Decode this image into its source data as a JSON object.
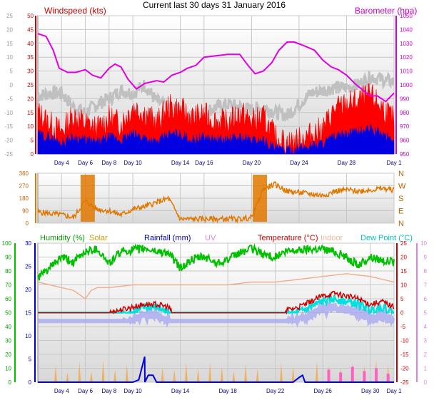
{
  "title": "Current last 30 days 31 January 2016",
  "chart_data": [
    {
      "type": "line",
      "panel": "wind-barometer",
      "left_axis_label": "Windspeed (kts)",
      "right_axis_label": "Barometer (hpa)",
      "outer_left_ticks": [
        "25",
        "20",
        "15",
        "10",
        "5",
        "0",
        "-5",
        "-10",
        "-15",
        "-20",
        "-25"
      ],
      "left_ticks": [
        "50",
        "45",
        "40",
        "35",
        "30",
        "25",
        "20",
        "15",
        "10",
        "5",
        "0"
      ],
      "right_ticks": [
        "1050",
        "1040",
        "1030",
        "1020",
        "1010",
        "1000",
        "990",
        "980",
        "970",
        "960",
        "950"
      ],
      "ylim_left": [
        0,
        50
      ],
      "ylim_right": [
        950,
        1050
      ],
      "x_ticks": [
        "Day 4",
        "Day 6",
        "Day 8",
        "Day 10",
        "Day 14",
        "Day 16",
        "Day 20",
        "Day 24",
        "Day 28",
        "Day 1"
      ],
      "x_tick_days": [
        4,
        6,
        8,
        10,
        14,
        16,
        20,
        24,
        28,
        32
      ],
      "xlim_days": [
        2,
        32
      ],
      "series": [
        {
          "key": "barometer",
          "color": "#e000e0",
          "axis": "right",
          "x": [
            2.0,
            2.7,
            3.3,
            3.8,
            4.5,
            5.2,
            6.0,
            6.6,
            7.3,
            8.0,
            8.5,
            9.0,
            9.6,
            10.3,
            11.0,
            12.0,
            12.6,
            13.3,
            14.0,
            14.6,
            15.3,
            16.0,
            17.0,
            18.0,
            19.0,
            19.8,
            20.3,
            21.0,
            21.7,
            22.3,
            23.0,
            23.6,
            24.5,
            25.3,
            26.0,
            26.7,
            27.3,
            28.0,
            28.7,
            29.4,
            30.0,
            30.6,
            31.3,
            32.0
          ],
          "values": [
            1037,
            1035,
            1025,
            1012,
            1009,
            1009,
            1011,
            1007,
            1005,
            1012,
            1015,
            1013,
            1004,
            997,
            1001,
            1003,
            1002,
            1007,
            1009,
            1012,
            1014,
            1020,
            1021,
            1022,
            1022,
            1013,
            1008,
            1010,
            1016,
            1025,
            1031,
            1031,
            1028,
            1025,
            1018,
            1013,
            1011,
            1007,
            1001,
            996,
            992,
            992,
            988,
            994
          ]
        },
        {
          "key": "wind-gust-trace",
          "color": "#c0c0c0",
          "axis": "left",
          "x": [
            2.0,
            3.0,
            4.0,
            5.0,
            6.0,
            7.0,
            8.0,
            9.0,
            10.0,
            11.0,
            12.0,
            13.0,
            14.0,
            15.0,
            16.0,
            17.0,
            18.0,
            19.0,
            20.0,
            21.0,
            22.0,
            23.0,
            24.0,
            25.0,
            26.0,
            27.0,
            28.0,
            29.0,
            30.0,
            31.0,
            32.0
          ],
          "values": [
            21,
            22,
            22,
            17,
            15,
            18,
            20,
            23,
            22,
            25,
            19,
            17,
            15,
            13,
            15,
            17,
            18,
            17,
            16,
            17,
            15,
            14,
            18,
            22,
            23,
            24,
            24,
            25,
            28,
            27,
            26
          ]
        },
        {
          "key": "wind-max",
          "color": "#ff0000",
          "axis": "left",
          "x": [
            2.0,
            3.0,
            4.0,
            5.0,
            6.0,
            7.0,
            8.0,
            9.0,
            10.0,
            11.0,
            12.0,
            13.0,
            14.0,
            15.0,
            16.0,
            17.0,
            18.0,
            19.0,
            20.0,
            21.0,
            22.0,
            23.0,
            24.0,
            25.0,
            26.0,
            27.0,
            28.0,
            29.0,
            30.0,
            31.0,
            32.0
          ],
          "values": [
            15,
            11,
            8,
            14,
            11,
            9,
            13,
            11,
            17,
            15,
            11,
            17,
            16,
            13,
            14,
            12,
            11,
            15,
            12,
            13,
            6,
            4,
            5,
            7,
            9,
            16,
            18,
            19,
            21,
            17,
            12
          ]
        },
        {
          "key": "wind-average",
          "color": "#0000e0",
          "axis": "left",
          "x": [
            2.0,
            3.0,
            4.0,
            5.0,
            6.0,
            7.0,
            8.0,
            9.0,
            10.0,
            11.0,
            12.0,
            13.0,
            14.0,
            15.0,
            16.0,
            17.0,
            18.0,
            19.0,
            20.0,
            21.0,
            22.0,
            23.0,
            24.0,
            25.0,
            26.0,
            27.0,
            28.0,
            29.0,
            30.0,
            31.0,
            32.0
          ],
          "values": [
            7,
            6,
            4,
            6,
            5,
            4,
            6,
            5,
            7,
            6,
            4,
            7,
            7,
            5,
            6,
            5,
            5,
            6,
            5,
            5,
            2,
            1,
            2,
            3,
            4,
            6,
            7,
            8,
            9,
            7,
            5
          ]
        }
      ]
    },
    {
      "type": "line",
      "panel": "wind-direction",
      "left_ticks": [
        "360",
        "270",
        "180",
        "90",
        "0"
      ],
      "right_ticks": [
        "N",
        "W",
        "S",
        "E",
        "N"
      ],
      "ylim": [
        0,
        360
      ],
      "series": [
        {
          "key": "wind-direction",
          "color": "#e07800",
          "x": [
            2.0,
            3.0,
            4.0,
            5.0,
            6.0,
            7.0,
            8.0,
            9.0,
            10.0,
            11.0,
            12.0,
            13.0,
            14.0,
            15.0,
            16.0,
            17.0,
            18.0,
            19.0,
            20.0,
            21.0,
            22.0,
            23.0,
            24.0,
            25.0,
            26.0,
            27.0,
            28.0,
            29.0,
            30.0,
            31.0,
            32.0
          ],
          "values": [
            80,
            70,
            60,
            40,
            160,
            100,
            90,
            60,
            100,
            120,
            150,
            180,
            30,
            30,
            30,
            30,
            30,
            30,
            40,
            250,
            280,
            230,
            220,
            210,
            200,
            230,
            240,
            230,
            240,
            250,
            240
          ]
        }
      ]
    },
    {
      "type": "line",
      "panel": "humidity-rain-temperature",
      "legend": [
        "Humidity (%)",
        "Solar",
        "Rainfall (mm)",
        "UV",
        "Temperature (°C)",
        "Indoor",
        "Dew Point (°C)"
      ],
      "outer_left_ticks": [
        "100",
        "90",
        "80",
        "70",
        "60",
        "50",
        "40",
        "30",
        "20",
        "10",
        "0"
      ],
      "left_ticks": [
        "30",
        "25",
        "20",
        "15",
        "10",
        "5",
        "0"
      ],
      "right_ticks": [
        "25",
        "20",
        "15",
        "10",
        "5",
        "0",
        "-5",
        "-10",
        "-15",
        "-20",
        "-25"
      ],
      "outer_right_ticks": [
        "10",
        "9",
        "8",
        "7",
        "6",
        "5",
        "4",
        "3",
        "2",
        "1",
        "0"
      ],
      "ylim_humidity": [
        0,
        100
      ],
      "ylim_rainfall": [
        0,
        30
      ],
      "ylim_temperature": [
        -25,
        25
      ],
      "x_ticks": [
        "Day 4",
        "Day 6",
        "Day 8",
        "Day 10",
        "Day 14",
        "Day 18",
        "Day 22",
        "Day 26",
        "Day 30",
        "Day 1"
      ],
      "x_tick_days": [
        4,
        6,
        8,
        10,
        14,
        18,
        22,
        26,
        30,
        32
      ],
      "series": [
        {
          "key": "humidity",
          "name": "Humidity (%)",
          "color": "#00c000",
          "axis": "humidity",
          "x": [
            2.0,
            3.0,
            4.0,
            5.0,
            6.0,
            7.0,
            8.0,
            9.0,
            10.0,
            11.0,
            12.0,
            13.0,
            14.0,
            15.0,
            16.0,
            17.0,
            18.0,
            19.0,
            20.0,
            21.0,
            22.0,
            23.0,
            24.0,
            25.0,
            26.0,
            27.0,
            28.0,
            29.0,
            30.0,
            31.0,
            32.0
          ],
          "values": [
            75,
            82,
            90,
            86,
            94,
            96,
            85,
            94,
            95,
            96,
            94,
            93,
            82,
            88,
            90,
            86,
            88,
            93,
            96,
            92,
            90,
            94,
            95,
            96,
            96,
            94,
            90,
            84,
            90,
            88,
            86
          ]
        },
        {
          "key": "indoor",
          "name": "Indoor",
          "color": "#f0b090",
          "axis": "temperature",
          "x": [
            2.0,
            3.0,
            4.0,
            5.0,
            6.0,
            6.5,
            7.0,
            8.0,
            10.0,
            12.0,
            14.0,
            16.0,
            18.0,
            20.0,
            22.0,
            24.0,
            26.0,
            28.0,
            30.0,
            31.0,
            32.0
          ],
          "values": [
            11,
            10,
            9,
            8,
            5,
            8,
            9,
            9,
            10,
            10,
            10,
            10,
            10,
            11,
            11,
            12,
            13,
            14,
            13,
            12,
            11
          ]
        },
        {
          "key": "temperature",
          "name": "Temperature (°C)",
          "color": "#d00000",
          "axis": "temperature",
          "x": [
            2.0,
            3.0,
            4.0,
            5.0,
            6.0,
            7.0,
            8.0,
            9.0,
            10.0,
            11.0,
            12.0,
            13.0,
            14.0,
            15.0,
            16.0,
            17.0,
            18.0,
            19.0,
            20.0,
            21.0,
            22.0,
            23.0,
            24.0,
            25.0,
            26.0,
            27.0,
            28.0,
            29.0,
            30.0,
            31.0,
            32.0
          ],
          "values": [
            -2,
            -3,
            -4,
            -1,
            -3,
            -3,
            0,
            1,
            2,
            3,
            3,
            2,
            -5,
            -5,
            -6,
            -5,
            -4,
            -4,
            -3,
            -7,
            -10,
            1,
            2,
            4,
            6,
            7,
            6,
            5,
            3,
            4,
            2
          ]
        },
        {
          "key": "dew-point",
          "name": "Dew Point (°C)",
          "color": "#00e0e0",
          "axis": "temperature",
          "x": [
            2.0,
            3.0,
            4.0,
            5.0,
            6.0,
            7.0,
            8.0,
            9.0,
            10.0,
            11.0,
            12.0,
            13.0,
            14.0,
            15.0,
            16.0,
            17.0,
            18.0,
            19.0,
            20.0,
            21.0,
            22.0,
            23.0,
            24.0,
            25.0,
            26.0,
            27.0,
            28.0,
            29.0,
            30.0,
            31.0,
            32.0
          ],
          "values": [
            -4,
            -6,
            -6,
            -3,
            -5,
            -5,
            -2,
            -1,
            0,
            2,
            2,
            0,
            -7,
            -8,
            -9,
            -8,
            -6,
            -6,
            -5,
            -9,
            -11,
            -1,
            0,
            2,
            4,
            5,
            4,
            3,
            1,
            2,
            0
          ]
        },
        {
          "key": "rainfall",
          "name": "Rainfall (mm)",
          "color": "#0000e0",
          "axis": "rainfall",
          "x": [
            2.0,
            10.0,
            10.5,
            11.0,
            11.02,
            11.3,
            11.7,
            12.0,
            23.5,
            24.0,
            24.3,
            24.5,
            32.0
          ],
          "values": [
            0,
            0,
            0.5,
            5.5,
            0,
            1.5,
            1.5,
            0,
            0,
            1,
            1.5,
            0,
            0
          ]
        },
        {
          "key": "solar",
          "name": "Solar",
          "color": "#f0b060",
          "axis": "uv",
          "x": [
            3.5,
            4.5,
            5.5,
            6.5,
            7.5,
            8.5,
            9.5,
            12.5,
            13.5,
            14.5,
            15.5,
            16.5,
            17.5,
            18.5,
            19.5,
            20.5,
            22.5,
            23.5,
            25.5,
            26.5,
            27.5,
            28.5,
            29.5,
            30.5,
            31.5
          ],
          "values": [
            1.2,
            0.7,
            1.5,
            0.8,
            1.6,
            0.9,
            1.3,
            1.1,
            0.9,
            1.4,
            1.0,
            1.4,
            1.1,
            0.8,
            1.3,
            1.0,
            1.4,
            1.2,
            1.5,
            1.2,
            1.0,
            1.4,
            1.2,
            1.6,
            1.3
          ]
        },
        {
          "key": "uv",
          "name": "UV",
          "color": "#ff60c0",
          "axis": "uv",
          "x": [
            26.5,
            27.5,
            28.5,
            29.5,
            30.5,
            31.5
          ],
          "values": [
            0.9,
            0.7,
            1.1,
            0.8,
            1.0,
            0.6
          ]
        }
      ]
    }
  ],
  "colors": {
    "windspeed_label": "#cc0000",
    "barometer_label": "#cc00cc",
    "humidity_label": "#00a000",
    "solar_label": "#c8a000",
    "rainfall_label": "#0000c0",
    "uv_label": "#e080e0",
    "temperature_label": "#cc0000",
    "indoor_label": "#f0b898",
    "dewpoint_label": "#00c0c0"
  }
}
